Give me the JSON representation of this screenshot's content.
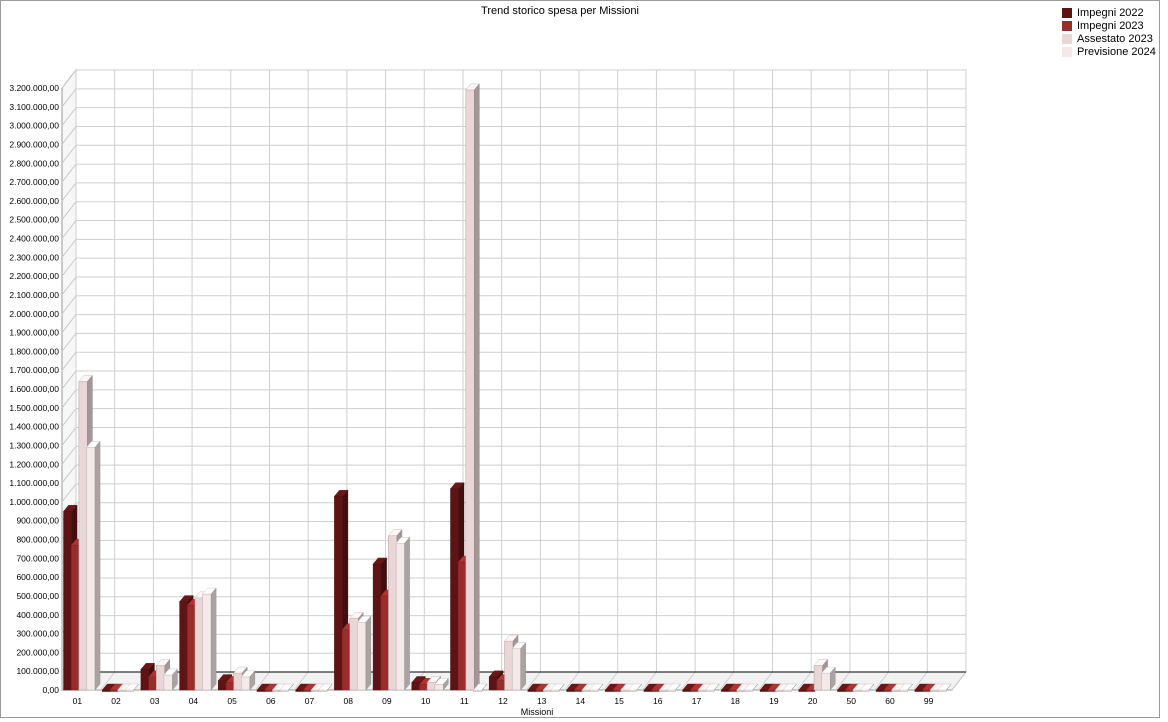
{
  "chart_data": {
    "type": "bar",
    "title": "Trend storico spesa per Missioni",
    "xlabel": "Missioni",
    "ylabel": "",
    "ylim": [
      0,
      3200000
    ],
    "y_ticks": [
      "0,00",
      "100.000,00",
      "200.000,00",
      "300.000,00",
      "400.000,00",
      "500.000,00",
      "600.000,00",
      "700.000,00",
      "800.000,00",
      "900.000,00",
      "1.000.000,00",
      "1.100.000,00",
      "1.200.000,00",
      "1.300.000,00",
      "1.400.000,00",
      "1.500.000,00",
      "1.600.000,00",
      "1.700.000,00",
      "1.800.000,00",
      "1.900.000,00",
      "2.000.000,00",
      "2.100.000,00",
      "2.200.000,00",
      "2.300.000,00",
      "2.400.000,00",
      "2.500.000,00",
      "2.600.000,00",
      "2.700.000,00",
      "2.800.000,00",
      "2.900.000,00",
      "3.000.000,00",
      "3.100.000,00",
      "3.200.000,00"
    ],
    "categories": [
      "01",
      "02",
      "03",
      "04",
      "05",
      "06",
      "07",
      "08",
      "09",
      "10",
      "11",
      "12",
      "13",
      "14",
      "15",
      "16",
      "17",
      "18",
      "19",
      "20",
      "50",
      "60",
      "99"
    ],
    "series": [
      {
        "name": "Impegni 2022",
        "color": "#5e1414",
        "values": [
          950000,
          0,
          110000,
          470000,
          50000,
          0,
          0,
          1030000,
          670000,
          40000,
          1070000,
          70000,
          0,
          0,
          0,
          0,
          0,
          0,
          0,
          0,
          0,
          0,
          0
        ]
      },
      {
        "name": "Impegni 2023",
        "color": "#9b2c2c",
        "values": [
          770000,
          0,
          70000,
          450000,
          40000,
          0,
          0,
          320000,
          500000,
          30000,
          680000,
          50000,
          0,
          0,
          0,
          0,
          0,
          0,
          0,
          0,
          0,
          0,
          0
        ]
      },
      {
        "name": "Assestato 2023",
        "color": "#ead6d6",
        "values": [
          1640000,
          0,
          130000,
          490000,
          90000,
          0,
          0,
          380000,
          820000,
          40000,
          3190000,
          260000,
          0,
          0,
          0,
          0,
          0,
          0,
          0,
          130000,
          0,
          0,
          0
        ]
      },
      {
        "name": "Previsione 2024",
        "color": "#f4e8e8",
        "values": [
          1290000,
          0,
          80000,
          510000,
          70000,
          0,
          0,
          360000,
          780000,
          30000,
          0,
          220000,
          0,
          0,
          0,
          0,
          0,
          0,
          0,
          90000,
          0,
          0,
          0
        ]
      }
    ],
    "grid": true,
    "legend_position": "top-right"
  }
}
